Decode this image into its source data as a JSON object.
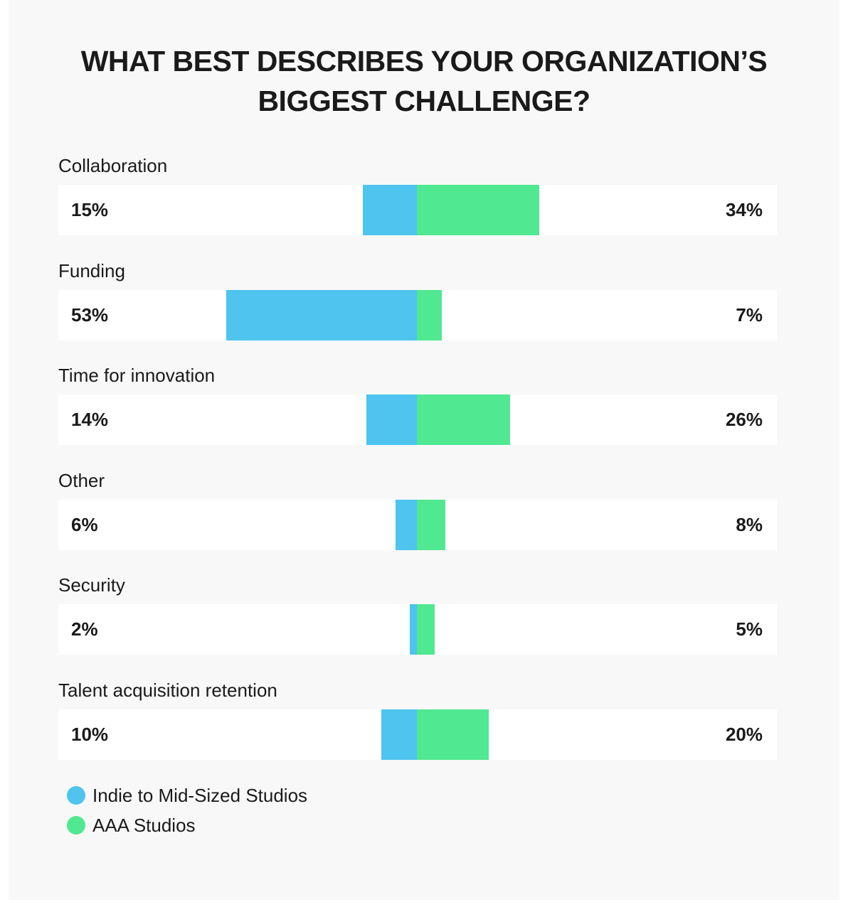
{
  "chart_data": {
    "type": "bar",
    "title": "WHAT BEST DESCRIBES YOUR ORGANIZATION’S BIGGEST CHALLENGE?",
    "title_lines": [
      "WHAT BEST DESCRIBES YOUR ORGANIZATION’S",
      "BIGGEST CHALLENGE?"
    ],
    "categories": [
      "Collaboration",
      "Funding",
      "Time for innovation",
      "Other",
      "Security",
      "Talent acquisition retention"
    ],
    "series": [
      {
        "name": "Indie to Mid-Sized Studios",
        "color": "#4ec4ee",
        "values": [
          15,
          53,
          14,
          6,
          2,
          10
        ],
        "labels": [
          "15%",
          "53%",
          "14%",
          "6%",
          "2%",
          "10%"
        ]
      },
      {
        "name": "AAA Studios",
        "color": "#50e890",
        "values": [
          34,
          7,
          26,
          8,
          5,
          20
        ],
        "labels": [
          "34%",
          "7%",
          "26%",
          "8%",
          "5%",
          "20%"
        ]
      }
    ],
    "legend_position": "bottom-left",
    "grid": false
  }
}
